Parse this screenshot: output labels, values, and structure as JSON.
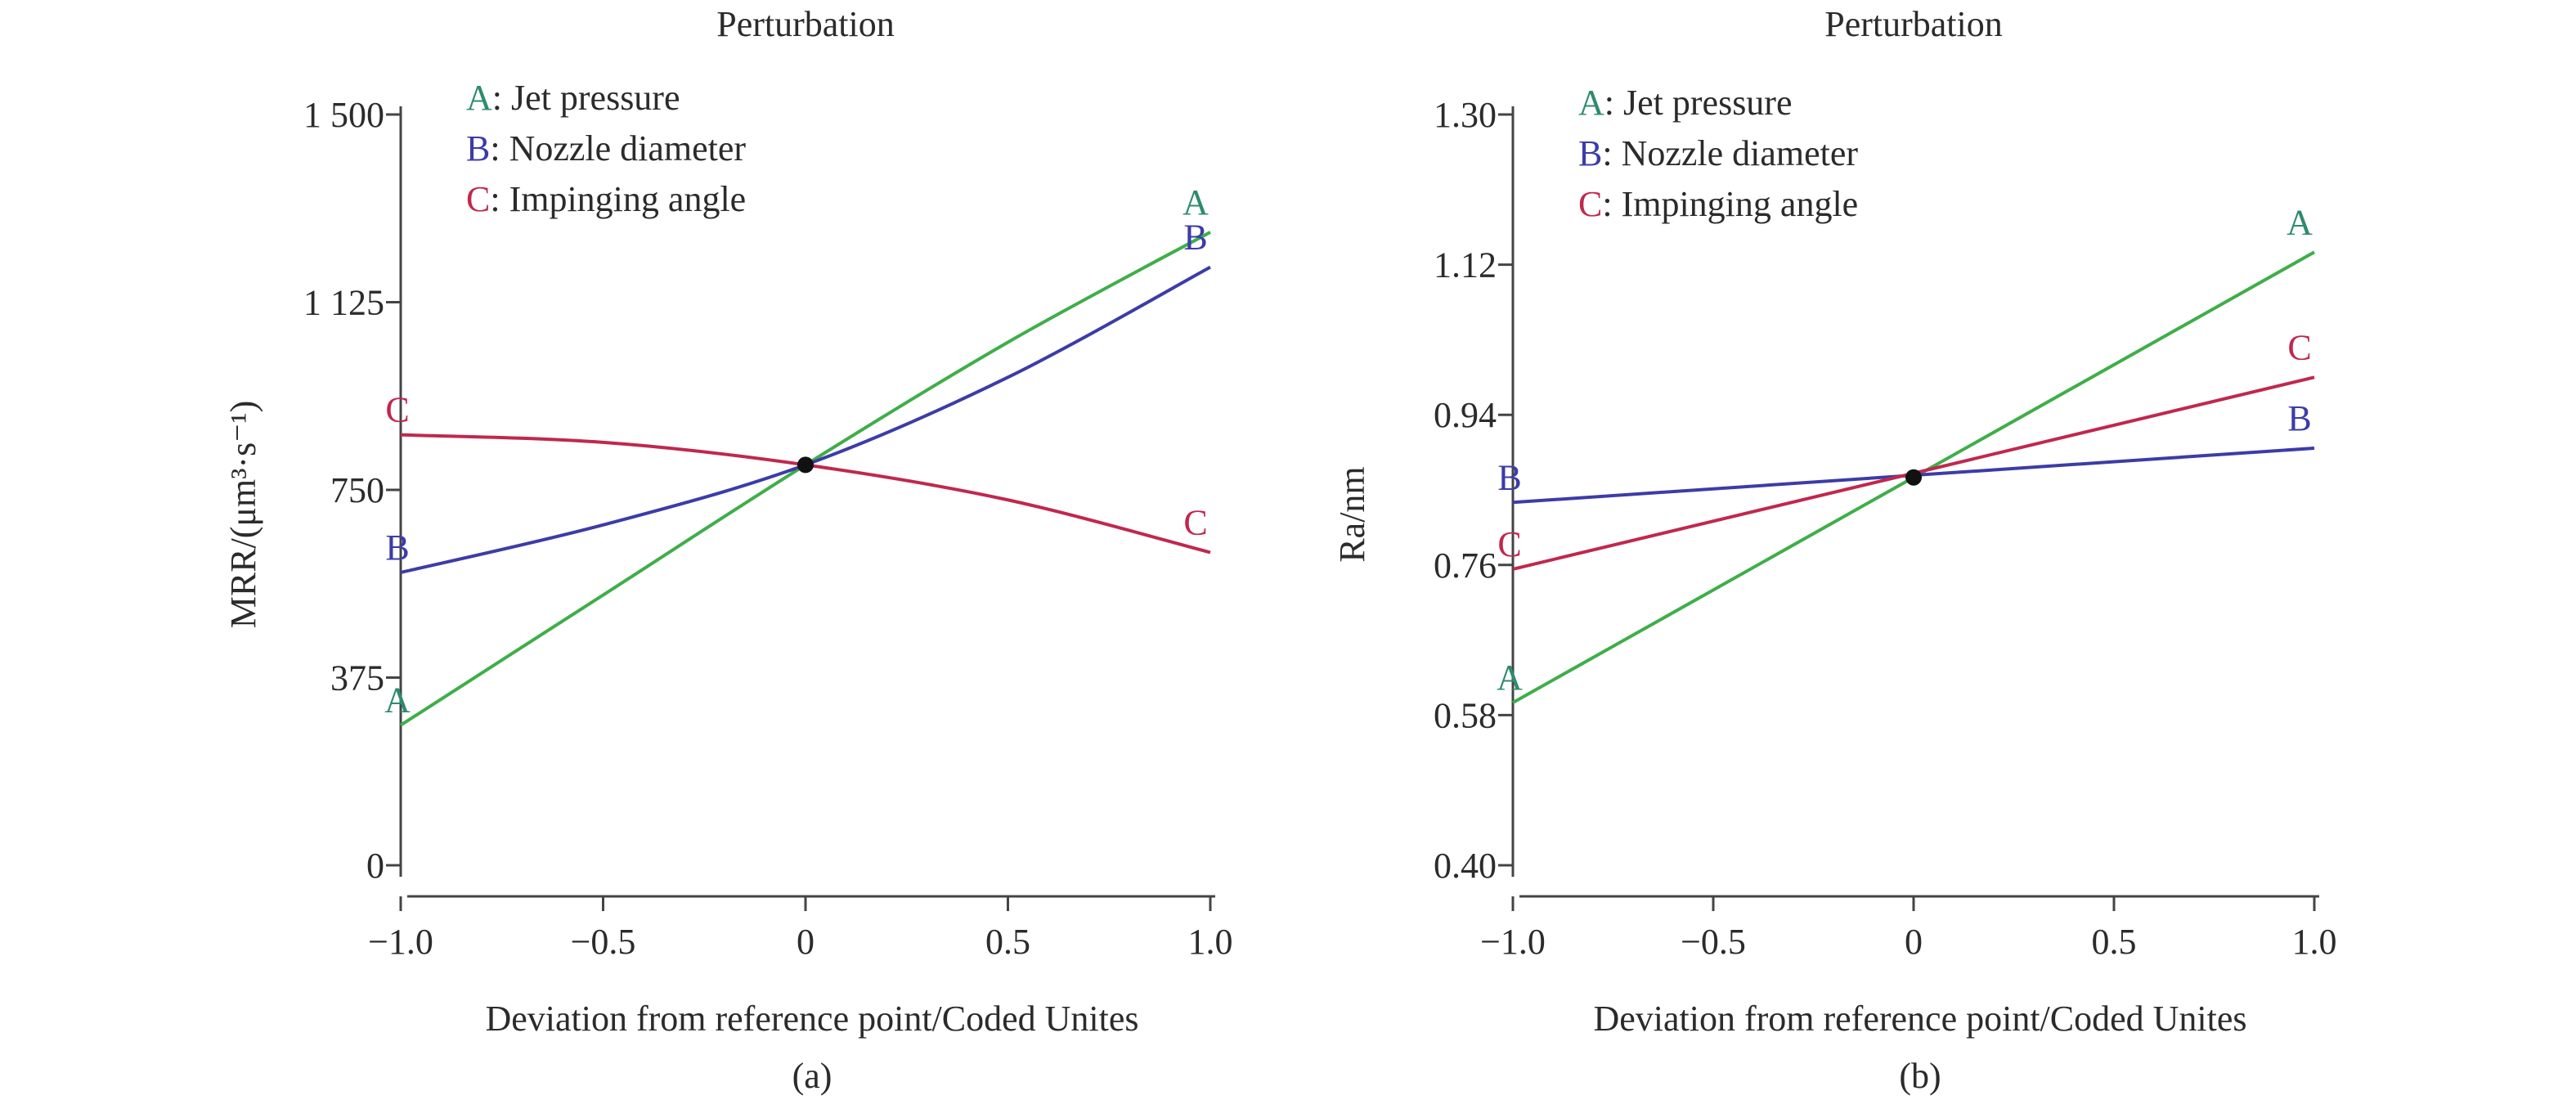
{
  "colors": {
    "A": "#3fae49",
    "A_text": "#2e8b6e",
    "B": "#3c3ca8",
    "C": "#c0284e",
    "axis": "#444444",
    "center": "#111111"
  },
  "chart_data": [
    {
      "type": "line",
      "title": "Perturbation",
      "xlabel": "Deviation from reference point/Coded Unites",
      "ylabel": "MRR/(μm³·s⁻¹)",
      "sublabel": "(a)",
      "xlim": [
        -1.0,
        1.0
      ],
      "ylim": [
        0,
        1500
      ],
      "xticks": [
        -1.0,
        -0.5,
        0,
        0.5,
        1.0
      ],
      "xtick_labels": [
        "−1.0",
        "−0.5",
        "0",
        "0.5",
        "1.0"
      ],
      "yticks": [
        0,
        375,
        750,
        1125,
        1500
      ],
      "ytick_labels": [
        "0",
        "375",
        "750",
        "1 125",
        "1 500"
      ],
      "legend": [
        {
          "key": "A",
          "letter": "A",
          "text": ": Jet pressure"
        },
        {
          "key": "B",
          "letter": "B",
          "text": ": Nozzle diameter"
        },
        {
          "key": "C",
          "letter": "C",
          "text": ": Impinging angle"
        }
      ],
      "series": [
        {
          "key": "A",
          "x": [
            -1.0,
            -0.5,
            0,
            0.5,
            1.0
          ],
          "y": [
            280,
            540,
            800,
            1045,
            1265
          ]
        },
        {
          "key": "B",
          "x": [
            -1.0,
            -0.5,
            0,
            0.5,
            1.0
          ],
          "y": [
            585,
            680,
            800,
            975,
            1195
          ]
        },
        {
          "key": "C",
          "x": [
            -1.0,
            -0.5,
            0,
            0.5,
            1.0
          ],
          "y": [
            860,
            845,
            800,
            730,
            625
          ]
        }
      ],
      "center_point": {
        "x": 0,
        "y": 800
      }
    },
    {
      "type": "line",
      "title": "Perturbation",
      "xlabel": "Deviation from reference point/Coded Unites",
      "ylabel": "Ra/nm",
      "sublabel": "(b)",
      "xlim": [
        -1.0,
        1.0
      ],
      "ylim": [
        0.4,
        1.3
      ],
      "xticks": [
        -1.0,
        -0.5,
        0,
        0.5,
        1.0
      ],
      "xtick_labels": [
        "−1.0",
        "−0.5",
        "0",
        "0.5",
        "1.0"
      ],
      "yticks": [
        0.4,
        0.58,
        0.76,
        0.94,
        1.12,
        1.3
      ],
      "ytick_labels": [
        "0.40",
        "0.58",
        "0.76",
        "0.94",
        "1.12",
        "1.30"
      ],
      "legend": [
        {
          "key": "A",
          "letter": "A",
          "text": ": Jet pressure"
        },
        {
          "key": "B",
          "letter": "B",
          "text": ": Nozzle diameter"
        },
        {
          "key": "C",
          "letter": "C",
          "text": ": Impinging angle"
        }
      ],
      "series": [
        {
          "key": "A",
          "x": [
            -1.0,
            1.0
          ],
          "y": [
            0.595,
            1.135
          ]
        },
        {
          "key": "B",
          "x": [
            -1.0,
            1.0
          ],
          "y": [
            0.835,
            0.9
          ]
        },
        {
          "key": "C",
          "x": [
            -1.0,
            1.0
          ],
          "y": [
            0.755,
            0.985
          ]
        }
      ],
      "center_point": {
        "x": 0,
        "y": 0.865
      }
    }
  ]
}
